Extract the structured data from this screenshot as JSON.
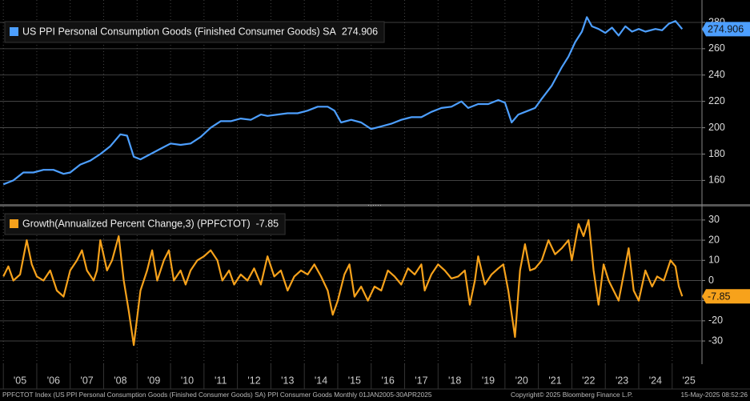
{
  "chart_data": [
    {
      "type": "line",
      "series": [
        {
          "name": "US PPI Personal Consumption Goods (Finished Consumer Goods) SA",
          "color": "#4d9fff",
          "x": [
            2005.0,
            2005.3,
            2005.6,
            2005.9,
            2006.2,
            2006.5,
            2006.8,
            2007.0,
            2007.3,
            2007.6,
            2007.9,
            2008.2,
            2008.5,
            2008.7,
            2008.9,
            2009.1,
            2009.4,
            2009.7,
            2010.0,
            2010.3,
            2010.6,
            2010.9,
            2011.2,
            2011.5,
            2011.8,
            2012.1,
            2012.4,
            2012.7,
            2012.9,
            2013.2,
            2013.5,
            2013.8,
            2014.1,
            2014.4,
            2014.7,
            2014.9,
            2015.1,
            2015.4,
            2015.7,
            2016.0,
            2016.3,
            2016.6,
            2016.9,
            2017.2,
            2017.5,
            2017.8,
            2018.1,
            2018.4,
            2018.7,
            2018.9,
            2019.2,
            2019.5,
            2019.8,
            2020.0,
            2020.2,
            2020.4,
            2020.7,
            2020.9,
            2021.1,
            2021.4,
            2021.7,
            2021.9,
            2022.1,
            2022.3,
            2022.45,
            2022.6,
            2022.8,
            2023.0,
            2023.2,
            2023.4,
            2023.6,
            2023.8,
            2024.0,
            2024.2,
            2024.5,
            2024.7,
            2024.9,
            2025.1,
            2025.3
          ],
          "values": [
            157,
            160,
            166,
            166,
            168,
            168,
            165,
            166,
            172,
            175,
            180,
            186,
            195,
            194,
            178,
            176,
            180,
            184,
            188,
            187,
            188,
            193,
            200,
            205,
            205,
            207,
            206,
            210,
            209,
            210,
            211,
            211,
            213,
            216,
            216,
            213,
            204,
            206,
            204,
            199,
            201,
            203,
            206,
            208,
            208,
            212,
            215,
            216,
            220,
            215,
            218,
            218,
            221,
            219,
            204,
            210,
            213,
            215,
            222,
            232,
            246,
            254,
            265,
            273,
            284,
            277,
            275,
            272,
            276,
            270,
            277,
            273,
            275,
            273,
            275,
            274,
            279,
            281,
            274.906
          ]
        }
      ],
      "xlim": [
        2004.9,
        2025.7
      ],
      "ylim": [
        142,
        297
      ],
      "yticks": [
        160,
        180,
        200,
        220,
        240,
        260,
        280
      ],
      "grid": true
    },
    {
      "type": "line",
      "series": [
        {
          "name": "Growth(Annualized Percent Change,3) (PPFCTOT)",
          "color": "#f7a21b",
          "x": [
            2005.0,
            2005.15,
            2005.3,
            2005.5,
            2005.7,
            2005.85,
            2006.0,
            2006.2,
            2006.4,
            2006.6,
            2006.8,
            2007.0,
            2007.2,
            2007.35,
            2007.5,
            2007.7,
            2007.8,
            2007.9,
            2008.1,
            2008.25,
            2008.45,
            2008.6,
            2008.75,
            2008.9,
            2009.1,
            2009.3,
            2009.45,
            2009.6,
            2009.8,
            2009.95,
            2010.1,
            2010.3,
            2010.45,
            2010.6,
            2010.8,
            2011.0,
            2011.2,
            2011.4,
            2011.55,
            2011.75,
            2011.9,
            2012.1,
            2012.3,
            2012.5,
            2012.7,
            2012.9,
            2013.1,
            2013.3,
            2013.5,
            2013.7,
            2013.9,
            2014.1,
            2014.3,
            2014.5,
            2014.7,
            2014.85,
            2015.0,
            2015.2,
            2015.35,
            2015.5,
            2015.7,
            2015.9,
            2016.1,
            2016.3,
            2016.5,
            2016.7,
            2016.9,
            2017.1,
            2017.3,
            2017.5,
            2017.6,
            2017.8,
            2018.0,
            2018.2,
            2018.4,
            2018.6,
            2018.8,
            2018.95,
            2019.1,
            2019.2,
            2019.4,
            2019.6,
            2019.8,
            2019.95,
            2020.1,
            2020.3,
            2020.45,
            2020.6,
            2020.75,
            2020.9,
            2021.1,
            2021.3,
            2021.5,
            2021.7,
            2021.9,
            2022.0,
            2022.2,
            2022.35,
            2022.5,
            2022.65,
            2022.8,
            2022.95,
            2023.1,
            2023.25,
            2023.4,
            2023.55,
            2023.7,
            2023.85,
            2024.0,
            2024.2,
            2024.4,
            2024.55,
            2024.75,
            2024.95,
            2025.1,
            2025.2,
            2025.3
          ],
          "values": [
            2,
            7,
            0,
            3,
            20,
            8,
            2,
            0,
            5,
            -5,
            -8,
            5,
            10,
            15,
            5,
            0,
            5,
            20,
            5,
            10,
            22,
            0,
            -15,
            -32,
            -5,
            5,
            15,
            0,
            10,
            15,
            0,
            5,
            -2,
            5,
            10,
            12,
            15,
            10,
            0,
            5,
            -2,
            3,
            0,
            6,
            -2,
            12,
            2,
            5,
            -5,
            2,
            5,
            3,
            8,
            2,
            -5,
            -17,
            -10,
            3,
            8,
            -8,
            -3,
            -10,
            -3,
            -5,
            5,
            2,
            -2,
            6,
            3,
            8,
            -5,
            3,
            8,
            5,
            1,
            2,
            5,
            -12,
            0,
            12,
            -2,
            3,
            6,
            8,
            -5,
            -28,
            5,
            18,
            5,
            6,
            10,
            20,
            13,
            16,
            20,
            10,
            28,
            22,
            30,
            5,
            -12,
            8,
            0,
            -5,
            -10,
            3,
            16,
            -5,
            -10,
            5,
            -3,
            2,
            0,
            10,
            7,
            -3,
            -7.85
          ]
        }
      ],
      "xlim": [
        2004.9,
        2025.7
      ],
      "ylim": [
        -41.5,
        36.7
      ],
      "yticks": [
        -30,
        -20,
        -10,
        0,
        10,
        20,
        30
      ],
      "grid": true,
      "xticks": [
        {
          "value": 2005,
          "label": "'05"
        },
        {
          "value": 2006,
          "label": "'06"
        },
        {
          "value": 2007,
          "label": "'07"
        },
        {
          "value": 2008,
          "label": "'08"
        },
        {
          "value": 2009,
          "label": "'09"
        },
        {
          "value": 2010,
          "label": "'10"
        },
        {
          "value": 2011,
          "label": "'11"
        },
        {
          "value": 2012,
          "label": "'12"
        },
        {
          "value": 2013,
          "label": "'13"
        },
        {
          "value": 2014,
          "label": "'14"
        },
        {
          "value": 2015,
          "label": "'15"
        },
        {
          "value": 2016,
          "label": "'16"
        },
        {
          "value": 2017,
          "label": "'17"
        },
        {
          "value": 2018,
          "label": "'18"
        },
        {
          "value": 2019,
          "label": "'19"
        },
        {
          "value": 2020,
          "label": "'20"
        },
        {
          "value": 2021,
          "label": "'21"
        },
        {
          "value": 2022,
          "label": "'22"
        },
        {
          "value": 2023,
          "label": "'23"
        },
        {
          "value": 2024,
          "label": "'24"
        },
        {
          "value": 2025,
          "label": "'25"
        }
      ]
    }
  ],
  "footer": {
    "description": "PPFCTOT Index (US PPI Personal Consumption Goods (Finished Consumer Goods) SA) PPI Consumer Goods  Monthly 01JAN2005-30APR2025",
    "copyright": "Copyright© 2025 Bloomberg Finance L.P.",
    "timestamp": "15-May-2025 08:52:26"
  }
}
